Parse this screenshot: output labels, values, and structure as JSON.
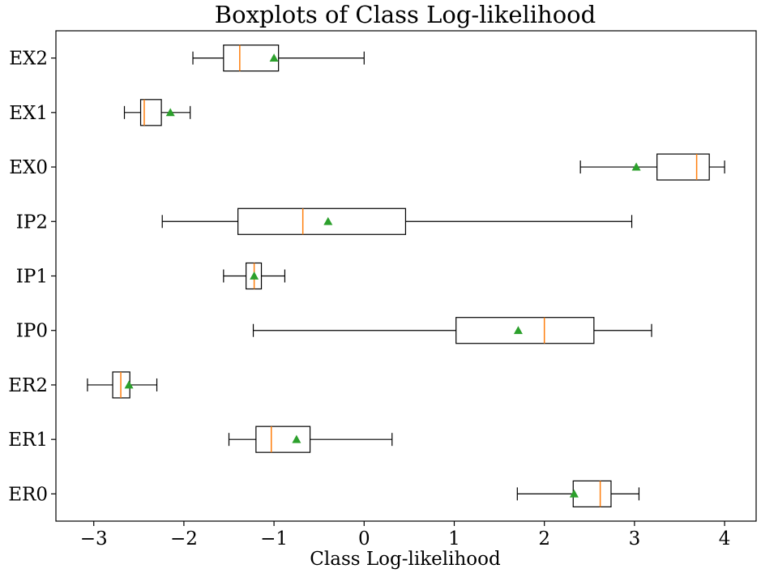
{
  "chart_data": {
    "type": "boxplot",
    "orientation": "horizontal",
    "title": "Boxplots of Class Log-likelihood",
    "xlabel": "Class Log-likelihood",
    "ylabel": "",
    "xlim": [
      -3.42,
      4.35
    ],
    "xticks": [
      -3,
      -2,
      -1,
      0,
      1,
      2,
      3,
      4
    ],
    "xtick_labels": [
      "−3",
      "−2",
      "−1",
      "0",
      "1",
      "2",
      "3",
      "4"
    ],
    "grid": false,
    "colors": {
      "box": "#000000",
      "median": "#ff7f0e",
      "mean": "#2ca02c"
    },
    "series": [
      {
        "label": "ER0",
        "whislo": 1.7,
        "q1": 2.32,
        "median": 2.62,
        "q3": 2.74,
        "whishi": 3.05,
        "mean": 2.33
      },
      {
        "label": "ER1",
        "whislo": -1.5,
        "q1": -1.2,
        "median": -1.03,
        "q3": -0.6,
        "whishi": 0.31,
        "mean": -0.75
      },
      {
        "label": "ER2",
        "whislo": -3.07,
        "q1": -2.79,
        "median": -2.7,
        "q3": -2.6,
        "whishi": -2.3,
        "mean": -2.61
      },
      {
        "label": "IP0",
        "whislo": -1.23,
        "q1": 1.02,
        "median": 2.0,
        "q3": 2.55,
        "whishi": 3.19,
        "mean": 1.71
      },
      {
        "label": "IP1",
        "whislo": -1.56,
        "q1": -1.31,
        "median": -1.22,
        "q3": -1.14,
        "whishi": -0.88,
        "mean": -1.22
      },
      {
        "label": "IP2",
        "whislo": -2.24,
        "q1": -1.4,
        "median": -0.68,
        "q3": 0.46,
        "whishi": 2.97,
        "mean": -0.4
      },
      {
        "label": "EX0",
        "whislo": 2.4,
        "q1": 3.25,
        "median": 3.69,
        "q3": 3.83,
        "whishi": 4.0,
        "mean": 3.02
      },
      {
        "label": "EX1",
        "whislo": -2.66,
        "q1": -2.48,
        "median": -2.44,
        "q3": -2.25,
        "whishi": -1.93,
        "mean": -2.15
      },
      {
        "label": "EX2",
        "whislo": -1.9,
        "q1": -1.56,
        "median": -1.38,
        "q3": -0.95,
        "whishi": 0.0,
        "mean": -1.0
      }
    ]
  }
}
